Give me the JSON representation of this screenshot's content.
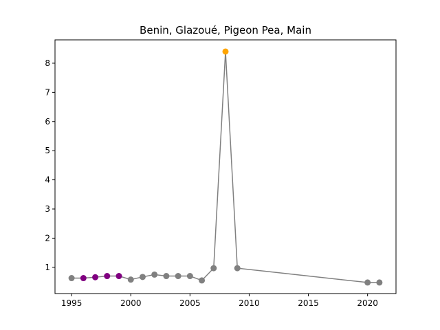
{
  "chart_data": {
    "type": "line",
    "title": "Benin, Glazoué, Pigeon Pea, Main",
    "xlabel": "",
    "ylabel": "",
    "xlim": [
      1993.6,
      2022.4
    ],
    "ylim": [
      0.1,
      8.8
    ],
    "x_ticks": [
      1995,
      2000,
      2005,
      2010,
      2015,
      2020
    ],
    "y_ticks": [
      1,
      2,
      3,
      4,
      5,
      6,
      7,
      8
    ],
    "grid": false,
    "legend": "none",
    "line_color": "#808080",
    "points": [
      {
        "x": 1995,
        "y": 0.63,
        "color": "#808080"
      },
      {
        "x": 1996,
        "y": 0.63,
        "color": "#800080"
      },
      {
        "x": 1997,
        "y": 0.66,
        "color": "#800080"
      },
      {
        "x": 1998,
        "y": 0.7,
        "color": "#800080"
      },
      {
        "x": 1999,
        "y": 0.7,
        "color": "#800080"
      },
      {
        "x": 2000,
        "y": 0.58,
        "color": "#808080"
      },
      {
        "x": 2001,
        "y": 0.67,
        "color": "#808080"
      },
      {
        "x": 2002,
        "y": 0.75,
        "color": "#808080"
      },
      {
        "x": 2003,
        "y": 0.7,
        "color": "#808080"
      },
      {
        "x": 2004,
        "y": 0.7,
        "color": "#808080"
      },
      {
        "x": 2005,
        "y": 0.7,
        "color": "#808080"
      },
      {
        "x": 2006,
        "y": 0.55,
        "color": "#808080"
      },
      {
        "x": 2007,
        "y": 0.97,
        "color": "#808080"
      },
      {
        "x": 2008,
        "y": 8.4,
        "color": "#FFA500"
      },
      {
        "x": 2009,
        "y": 0.97,
        "color": "#808080"
      },
      {
        "x": 2020,
        "y": 0.48,
        "color": "#808080"
      },
      {
        "x": 2021,
        "y": 0.48,
        "color": "#808080"
      }
    ]
  }
}
